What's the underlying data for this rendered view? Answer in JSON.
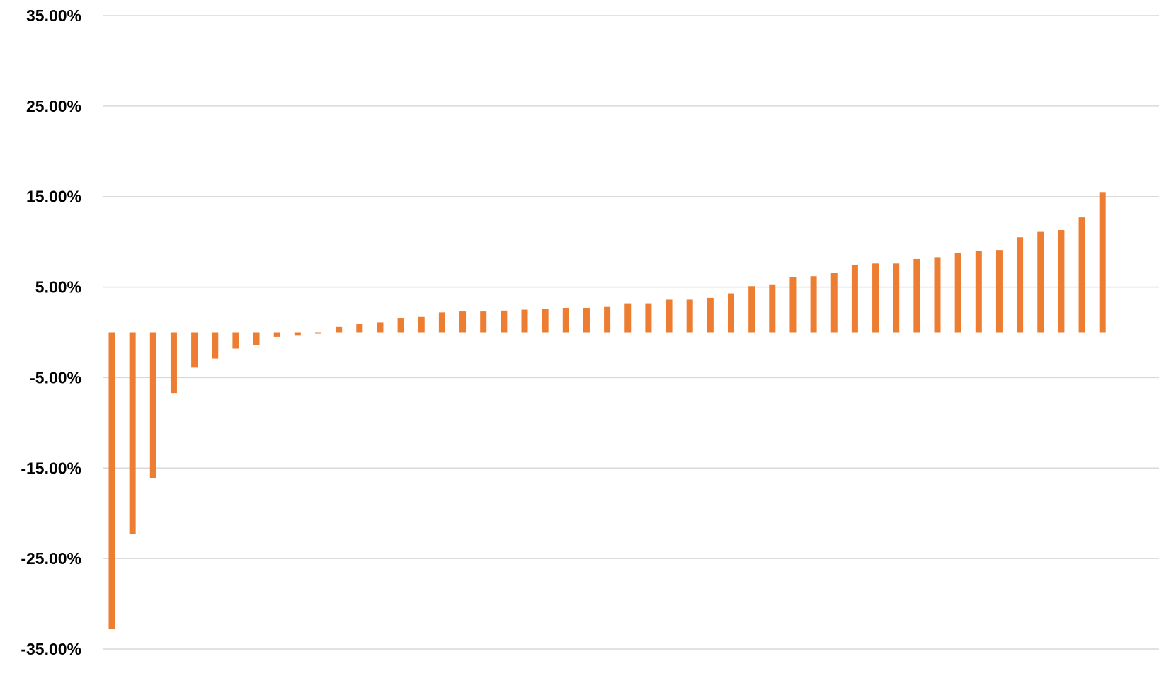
{
  "chart_data": {
    "type": "bar",
    "title": "",
    "xlabel": "",
    "ylabel": "",
    "grid": true,
    "legend": "none",
    "bar_color": "#ED7D31",
    "gridline_color": "#D9D9D9",
    "ylim": [
      -35,
      35
    ],
    "yticks": [
      35,
      25,
      15,
      5,
      -5,
      -15,
      -25,
      -35
    ],
    "ytick_labels": [
      "35.00%",
      "25.00%",
      "15.00%",
      "5.00%",
      "-5.00%",
      "-15.00%",
      "-25.00%",
      "-35.00%"
    ],
    "series": [
      {
        "values": [
          -32.8,
          -22.3,
          -16.1,
          -6.7,
          -3.9,
          -2.9,
          -1.8,
          -1.4,
          -0.5,
          -0.3,
          -0.15,
          0.6,
          0.9,
          1.1,
          1.6,
          1.7,
          2.2,
          2.3,
          2.3,
          2.4,
          2.5,
          2.6,
          2.7,
          2.7,
          2.8,
          3.2,
          3.2,
          3.6,
          3.6,
          3.8,
          4.3,
          5.1,
          5.3,
          6.1,
          6.2,
          6.6,
          7.4,
          7.6,
          7.6,
          8.1,
          8.3,
          8.8,
          9.0,
          9.1,
          10.5,
          11.1,
          11.3,
          12.7,
          15.5
        ]
      }
    ]
  }
}
